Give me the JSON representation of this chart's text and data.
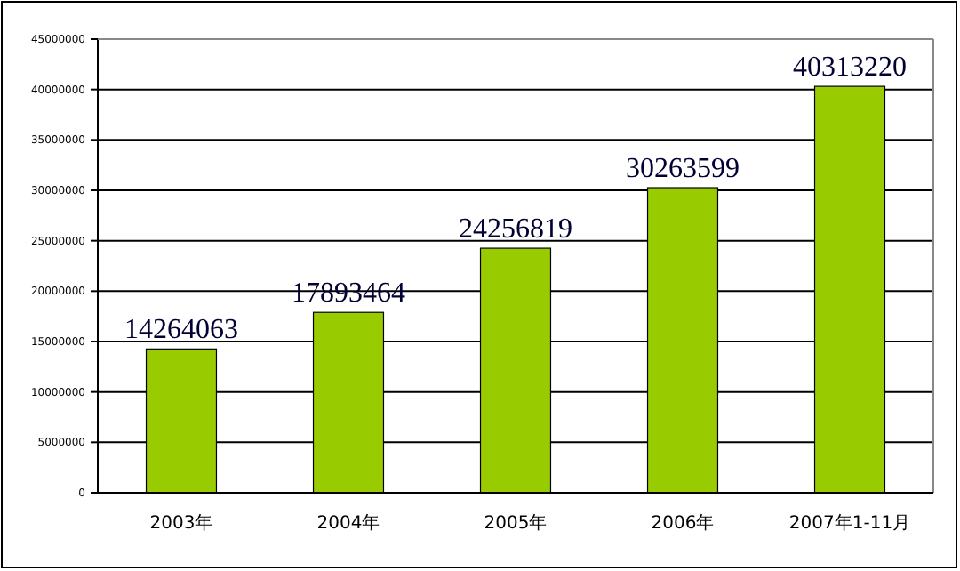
{
  "chart_data": {
    "type": "bar",
    "categories": [
      "2003年",
      "2004年",
      "2005年",
      "2006年",
      "2007年1-11月"
    ],
    "values": [
      14264063,
      17893464,
      24256819,
      30263599,
      40313220
    ],
    "color": "#99cc00",
    "ylim": [
      0,
      45000000
    ],
    "yticks": [
      0,
      5000000,
      10000000,
      15000000,
      20000000,
      25000000,
      30000000,
      35000000,
      40000000,
      45000000
    ],
    "grid": "y",
    "data_labels": true
  }
}
